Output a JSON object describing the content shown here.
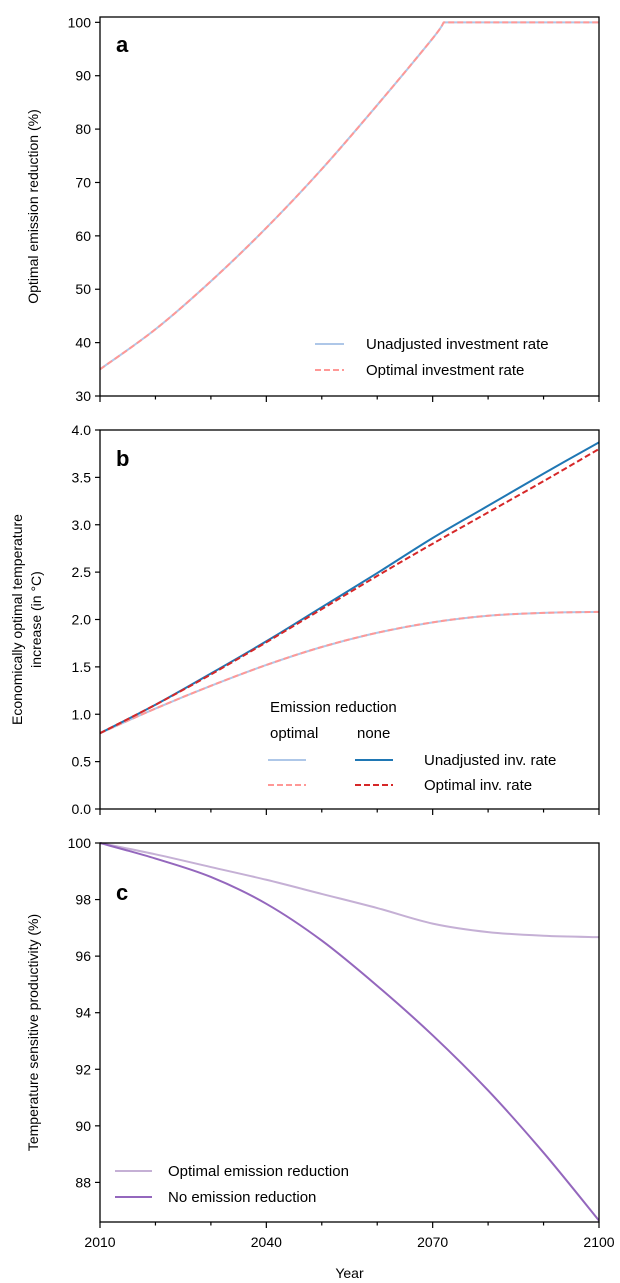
{
  "chart_data": [
    {
      "panel": "a",
      "type": "line",
      "title": "",
      "xlabel": "",
      "ylabel": "Optimal emission reduction (%)",
      "xlim": [
        2010,
        2100
      ],
      "ylim": [
        30,
        101
      ],
      "yticks": [
        30,
        40,
        50,
        60,
        70,
        80,
        90,
        100
      ],
      "xticks": [
        2010,
        2040,
        2070,
        2100
      ],
      "grid": false,
      "legend_position": "bottom-right",
      "x": [
        2010,
        2020,
        2030,
        2040,
        2050,
        2060,
        2070,
        2072,
        2080,
        2090,
        2100
      ],
      "series": [
        {
          "name": "Unadjusted investment rate",
          "color": "#aec7e8",
          "dash": "solid",
          "values": [
            35,
            42.5,
            51.5,
            61.5,
            72.5,
            84.5,
            97,
            100,
            100,
            100,
            100
          ]
        },
        {
          "name": "Optimal investment rate",
          "color": "#ff9896",
          "dash": "dashed",
          "values": [
            35,
            42.5,
            51.5,
            61.5,
            72.5,
            84.5,
            97,
            100,
            100,
            100,
            100
          ]
        }
      ]
    },
    {
      "panel": "b",
      "type": "line",
      "title": "",
      "xlabel": "",
      "ylabel": [
        "Economically optimal temperature",
        "increase (in °C)"
      ],
      "xlim": [
        2010,
        2100
      ],
      "ylim": [
        0,
        4
      ],
      "yticks": [
        "0.0",
        "0.5",
        "1.0",
        "1.5",
        "2.0",
        "2.5",
        "3.0",
        "3.5",
        "4.0"
      ],
      "xticks": [
        2010,
        2040,
        2070,
        2100
      ],
      "grid": false,
      "legend_position": "bottom-center",
      "legend_title": "Emission reduction",
      "legend_columns": [
        "optimal",
        "none"
      ],
      "legend_rows": [
        "Unadjusted inv. rate",
        "Optimal inv. rate"
      ],
      "x": [
        2010,
        2020,
        2030,
        2040,
        2050,
        2060,
        2070,
        2080,
        2090,
        2100
      ],
      "series": [
        {
          "name": "Unadjusted inv. rate",
          "group": "optimal",
          "color": "#aec7e8",
          "dash": "solid",
          "values": [
            0.8,
            1.06,
            1.3,
            1.52,
            1.71,
            1.86,
            1.97,
            2.04,
            2.07,
            2.08
          ]
        },
        {
          "name": "Optimal inv. rate",
          "group": "optimal",
          "color": "#ff9896",
          "dash": "dashed",
          "values": [
            0.8,
            1.06,
            1.3,
            1.52,
            1.71,
            1.86,
            1.97,
            2.04,
            2.07,
            2.08
          ]
        },
        {
          "name": "Unadjusted inv. rate",
          "group": "none",
          "color": "#1f77b4",
          "dash": "solid",
          "values": [
            0.8,
            1.1,
            1.43,
            1.77,
            2.13,
            2.49,
            2.86,
            3.2,
            3.54,
            3.87
          ]
        },
        {
          "name": "Optimal inv. rate",
          "group": "none",
          "color": "#d62728",
          "dash": "dashed",
          "values": [
            0.8,
            1.1,
            1.42,
            1.76,
            2.11,
            2.46,
            2.8,
            3.13,
            3.46,
            3.8
          ]
        }
      ]
    },
    {
      "panel": "c",
      "type": "line",
      "title": "",
      "xlabel": "Year",
      "ylabel": "Temperature sensitive productivity (%)",
      "xlim": [
        2010,
        2100
      ],
      "ylim": [
        86.6,
        100
      ],
      "yticks": [
        88,
        90,
        92,
        94,
        96,
        98,
        100
      ],
      "xticks": [
        2010,
        2040,
        2070,
        2100
      ],
      "grid": false,
      "legend_position": "bottom-left",
      "x": [
        2010,
        2020,
        2030,
        2040,
        2050,
        2060,
        2070,
        2080,
        2090,
        2100
      ],
      "series": [
        {
          "name": "Optimal emission reduction",
          "color": "#c5b0d5",
          "dash": "solid",
          "values": [
            100,
            99.6,
            99.15,
            98.7,
            98.2,
            97.7,
            97.15,
            96.85,
            96.72,
            96.67
          ]
        },
        {
          "name": "No emission reduction",
          "color": "#9467bd",
          "dash": "solid",
          "values": [
            100,
            99.45,
            98.8,
            97.85,
            96.55,
            94.95,
            93.2,
            91.25,
            89.05,
            86.65
          ]
        }
      ]
    }
  ]
}
